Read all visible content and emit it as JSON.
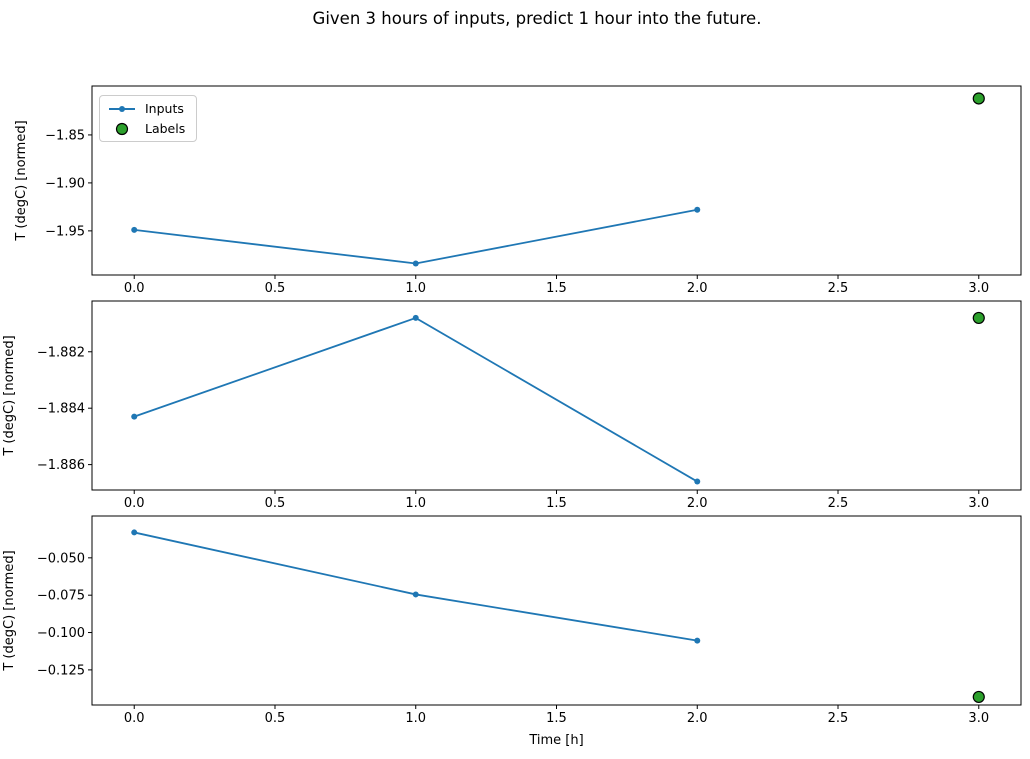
{
  "title": "Given 3 hours of inputs, predict 1 hour into the future.",
  "colors": {
    "inputs": "#1f77b4",
    "labels": "#2ca02c",
    "labels_edge": "#000000",
    "axis": "#000000",
    "background": "#ffffff"
  },
  "legend": {
    "position": "upper left",
    "items": [
      {
        "label": "Inputs",
        "marker": "line-dot",
        "color": "#1f77b4"
      },
      {
        "label": "Labels",
        "marker": "circle",
        "color": "#2ca02c",
        "edge_color": "#000000"
      }
    ]
  },
  "chart_data": [
    {
      "type": "line",
      "title": "",
      "xlabel": "",
      "ylabel": "T (degC) [normed]",
      "xlim": [
        -0.15,
        3.15
      ],
      "ylim": [
        -1.996,
        -1.799
      ],
      "grid": false,
      "show_legend": true,
      "xticks": [
        {
          "v": 0.0,
          "label": "0.0"
        },
        {
          "v": 0.5,
          "label": "0.5"
        },
        {
          "v": 1.0,
          "label": "1.0"
        },
        {
          "v": 1.5,
          "label": "1.5"
        },
        {
          "v": 2.0,
          "label": "2.0"
        },
        {
          "v": 2.5,
          "label": "2.5"
        },
        {
          "v": 3.0,
          "label": "3.0"
        }
      ],
      "yticks": [
        {
          "v": -1.85,
          "label": "−1.85"
        },
        {
          "v": -1.9,
          "label": "−1.90"
        },
        {
          "v": -1.95,
          "label": "−1.95"
        }
      ],
      "series": [
        {
          "name": "Inputs",
          "type": "line",
          "color": "#1f77b4",
          "x": [
            0,
            1,
            2
          ],
          "y": [
            -1.949,
            -1.984,
            -1.928
          ]
        },
        {
          "name": "Labels",
          "type": "scatter",
          "color": "#2ca02c",
          "edge": "#000000",
          "x": [
            3
          ],
          "y": [
            -1.812
          ]
        }
      ]
    },
    {
      "type": "line",
      "title": "",
      "xlabel": "",
      "ylabel": "T (degC) [normed]",
      "xlim": [
        -0.15,
        3.15
      ],
      "ylim": [
        -1.8869,
        -1.8802
      ],
      "grid": false,
      "show_legend": false,
      "xticks": [
        {
          "v": 0.0,
          "label": "0.0"
        },
        {
          "v": 0.5,
          "label": "0.5"
        },
        {
          "v": 1.0,
          "label": "1.0"
        },
        {
          "v": 1.5,
          "label": "1.5"
        },
        {
          "v": 2.0,
          "label": "2.0"
        },
        {
          "v": 2.5,
          "label": "2.5"
        },
        {
          "v": 3.0,
          "label": "3.0"
        }
      ],
      "yticks": [
        {
          "v": -1.882,
          "label": "−1.882"
        },
        {
          "v": -1.884,
          "label": "−1.884"
        },
        {
          "v": -1.886,
          "label": "−1.886"
        }
      ],
      "series": [
        {
          "name": "Inputs",
          "type": "line",
          "color": "#1f77b4",
          "x": [
            0,
            1,
            2
          ],
          "y": [
            -1.8843,
            -1.8808,
            -1.8866
          ]
        },
        {
          "name": "Labels",
          "type": "scatter",
          "color": "#2ca02c",
          "edge": "#000000",
          "x": [
            3
          ],
          "y": [
            -1.8808
          ]
        }
      ]
    },
    {
      "type": "line",
      "title": "",
      "xlabel": "Time [h]",
      "ylabel": "T (degC) [normed]",
      "xlim": [
        -0.15,
        3.15
      ],
      "ylim": [
        -0.1485,
        -0.022
      ],
      "grid": false,
      "show_legend": false,
      "xticks": [
        {
          "v": 0.0,
          "label": "0.0"
        },
        {
          "v": 0.5,
          "label": "0.5"
        },
        {
          "v": 1.0,
          "label": "1.0"
        },
        {
          "v": 1.5,
          "label": "1.5"
        },
        {
          "v": 2.0,
          "label": "2.0"
        },
        {
          "v": 2.5,
          "label": "2.5"
        },
        {
          "v": 3.0,
          "label": "3.0"
        }
      ],
      "yticks": [
        {
          "v": -0.05,
          "label": "−0.050"
        },
        {
          "v": -0.075,
          "label": "−0.075"
        },
        {
          "v": -0.1,
          "label": "−0.100"
        },
        {
          "v": -0.125,
          "label": "−0.125"
        }
      ],
      "series": [
        {
          "name": "Inputs",
          "type": "line",
          "color": "#1f77b4",
          "x": [
            0,
            1,
            2
          ],
          "y": [
            -0.033,
            -0.0745,
            -0.1054
          ]
        },
        {
          "name": "Labels",
          "type": "scatter",
          "color": "#2ca02c",
          "edge": "#000000",
          "x": [
            3
          ],
          "y": [
            -0.1431
          ]
        }
      ]
    }
  ]
}
